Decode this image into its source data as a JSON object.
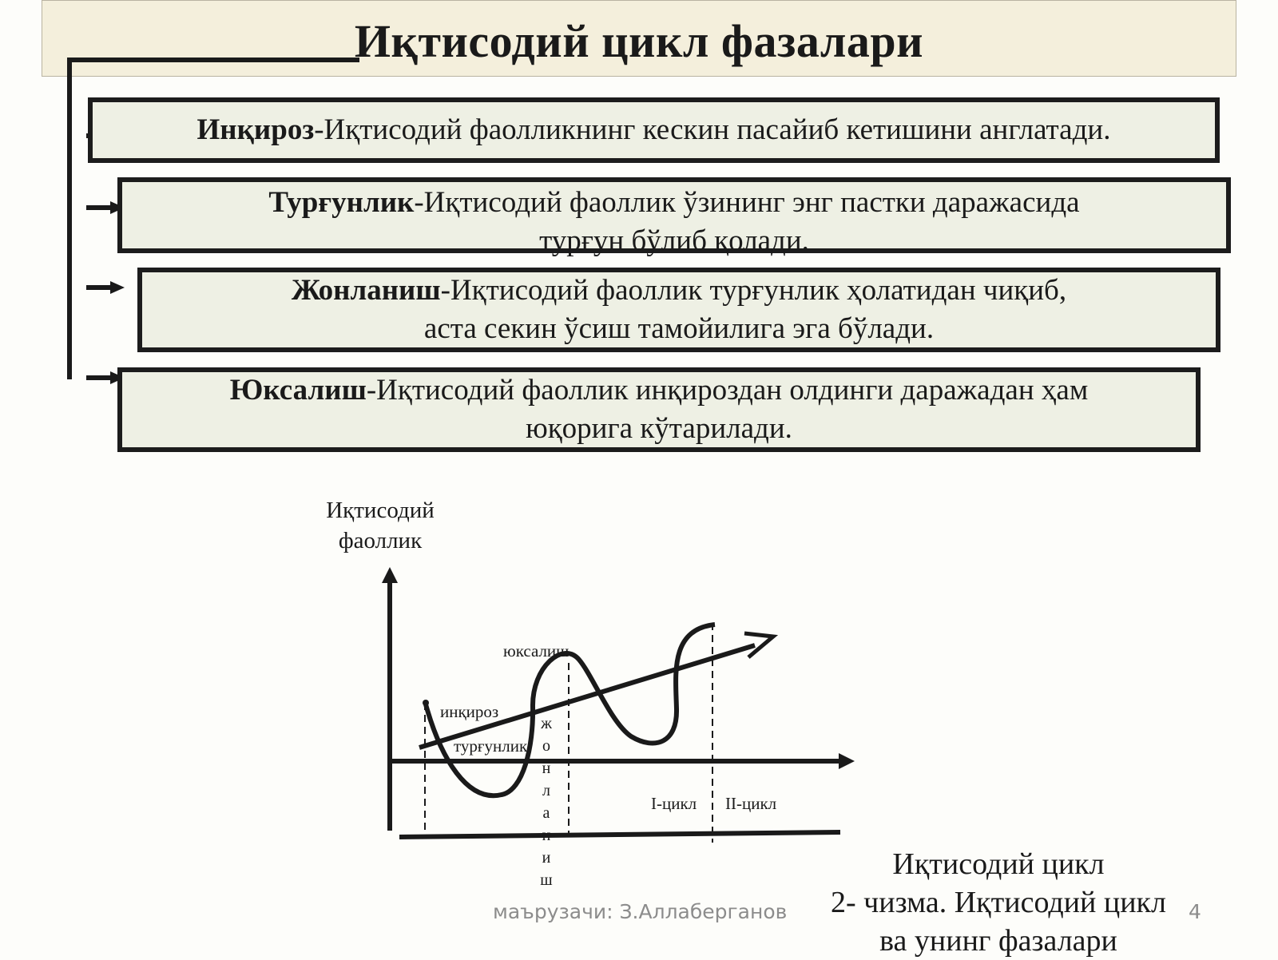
{
  "title": "Иқтисодий цикл фазалари",
  "phases": [
    {
      "term": "Инқироз",
      "description": "-Иқтисодий фаолликнинг кескин пасайиб кетишини англатади."
    },
    {
      "term": "Турғунлик",
      "description": "-Иқтисодий фаоллик ўзининг энг пастки даражасида",
      "description2": "турғун бўлиб қолади."
    },
    {
      "term": "Жонланиш",
      "description": "-Иқтисодий фаоллик турғунлик ҳолатидан чиқиб,",
      "description2": "аста секин ўсиш тамойилига эга бўлади."
    },
    {
      "term": "Юксалиш",
      "description": "-Иқтисодий фаоллик инқироздан олдинги даражадан ҳам",
      "description2": "юқорига кўтарилади."
    }
  ],
  "chart_data": {
    "type": "line",
    "ylabel_line1": "Иқтисодий",
    "ylabel_line2": "фаоллик",
    "labels": {
      "crisis": "инқироз",
      "stagnation": "турғунлик",
      "recovery_letters": [
        "ж",
        "о",
        "н",
        "л",
        "а",
        "н",
        "и",
        "ш"
      ],
      "boom": "юксалиш",
      "cycle1": "I-цикл",
      "cycle2": "II-цикл"
    }
  },
  "caption": {
    "line1": "Иқтисодий цикл",
    "line2": "2- чизма. Иқтисодий цикл",
    "line3": "ва унинг фазалари"
  },
  "footer": {
    "author": "маърузачи: З.Аллаберганов",
    "page": "4"
  }
}
